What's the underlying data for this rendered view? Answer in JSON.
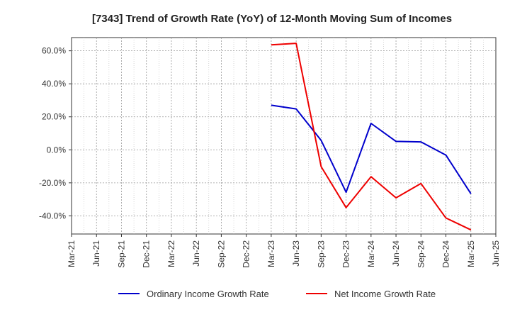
{
  "chart_data": {
    "type": "line",
    "title": "[7343]  Trend of Growth Rate (YoY) of 12-Month Moving Sum of Incomes",
    "xlabel": "",
    "ylabel": "",
    "x_ticks": [
      "Mar-21",
      "Jun-21",
      "Sep-21",
      "Dec-21",
      "Mar-22",
      "Jun-22",
      "Sep-22",
      "Dec-22",
      "Mar-23",
      "Jun-23",
      "Sep-23",
      "Dec-23",
      "Mar-24",
      "Jun-24",
      "Sep-24",
      "Dec-24",
      "Mar-25",
      "Jun-25"
    ],
    "y_ticks": [
      60,
      40,
      20,
      0,
      -20,
      -40
    ],
    "y_tick_labels": [
      "60.0%",
      "40.0%",
      "20.0%",
      "0.0%",
      "-20.0%",
      "-40.0%"
    ],
    "ylim": [
      -51,
      68
    ],
    "grid": true,
    "legend_position": "bottom",
    "series": [
      {
        "name": "Ordinary Income Growth Rate",
        "color": "#0000cc",
        "points": [
          {
            "x": "Mar-23",
            "y": 27.0
          },
          {
            "x": "Jun-23",
            "y": 24.8
          },
          {
            "x": "Sep-23",
            "y": 5.7
          },
          {
            "x": "Dec-23",
            "y": -25.7
          },
          {
            "x": "Mar-24",
            "y": 16.0
          },
          {
            "x": "Jun-24",
            "y": 5.1
          },
          {
            "x": "Sep-24",
            "y": 4.8
          },
          {
            "x": "Dec-24",
            "y": -3.2
          },
          {
            "x": "Mar-25",
            "y": -26.6
          }
        ]
      },
      {
        "name": "Net Income Growth Rate",
        "color": "#ee0000",
        "points": [
          {
            "x": "Mar-23",
            "y": 63.6
          },
          {
            "x": "Jun-23",
            "y": 64.5
          },
          {
            "x": "Sep-23",
            "y": -10.2
          },
          {
            "x": "Dec-23",
            "y": -35.0
          },
          {
            "x": "Mar-24",
            "y": -16.3
          },
          {
            "x": "Jun-24",
            "y": -29.1
          },
          {
            "x": "Sep-24",
            "y": -20.4
          },
          {
            "x": "Dec-24",
            "y": -41.3
          },
          {
            "x": "Mar-25",
            "y": -48.5
          }
        ]
      }
    ]
  }
}
